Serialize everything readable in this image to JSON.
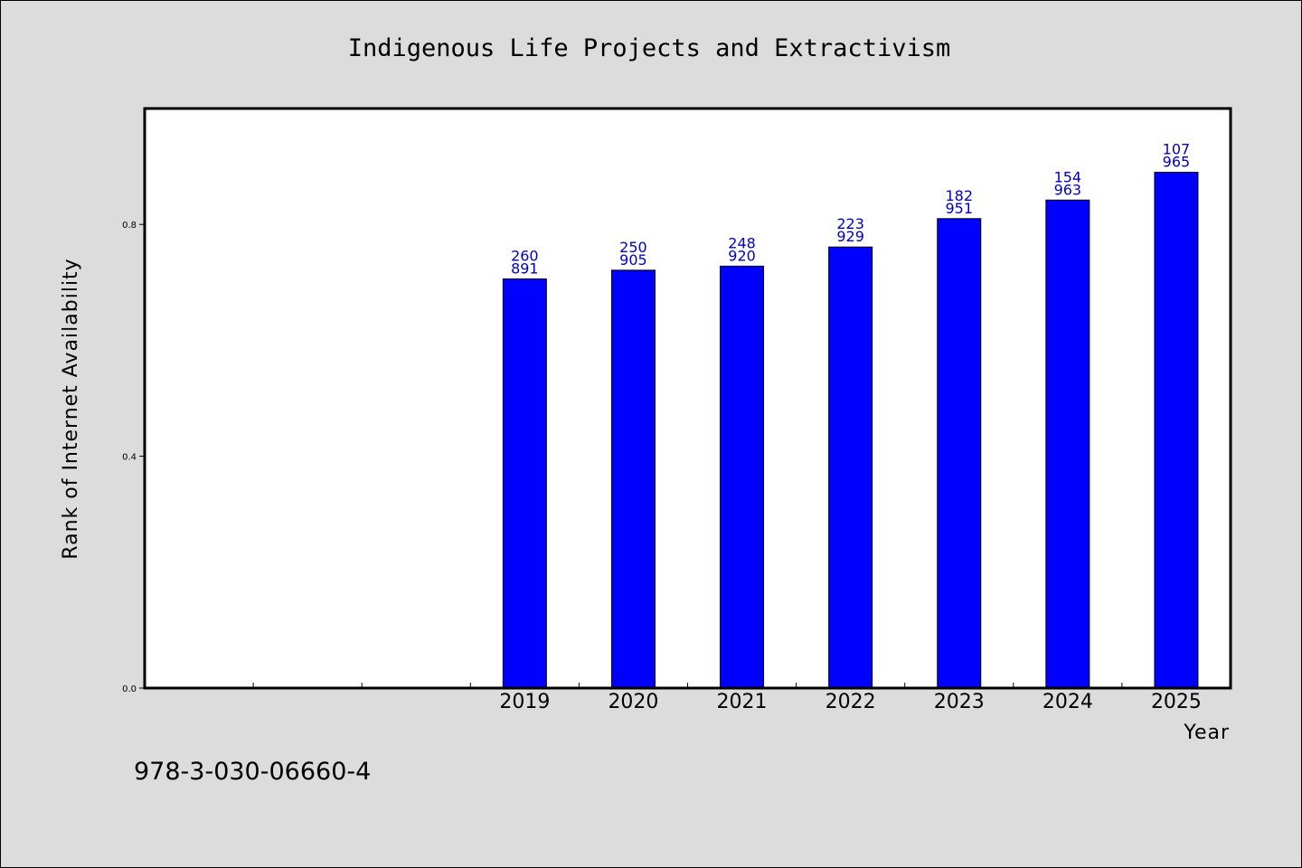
{
  "chart_data": {
    "type": "bar",
    "title": "Indigenous Life Projects and Extractivism",
    "xlabel": "Year",
    "ylabel": "Rank of Internet Availability",
    "categories": [
      "",
      "",
      "",
      "2019",
      "2020",
      "2021",
      "2022",
      "2023",
      "2024",
      "2025"
    ],
    "values": [
      null,
      null,
      null,
      0.706,
      0.721,
      0.728,
      0.761,
      0.81,
      0.842,
      0.89
    ],
    "data_labels": [
      null,
      null,
      null,
      [
        "260",
        "891"
      ],
      [
        "250",
        "905"
      ],
      [
        "248",
        "920"
      ],
      [
        "223",
        "929"
      ],
      [
        "182",
        "951"
      ],
      [
        "154",
        "963"
      ],
      [
        "107",
        "965"
      ]
    ],
    "ylim": [
      0,
      1.0
    ],
    "y_ticks": [
      0.0,
      0.4,
      0.8
    ],
    "y_tick_labels": [
      "0.0",
      "0.4",
      "0.8"
    ],
    "grid": false,
    "bar_color": "#0000ff",
    "label_color": "#0000cc",
    "background": "#dcdcdc",
    "plot_background": "#ffffff"
  },
  "footer": {
    "isbn": "978-3-030-06660-4"
  }
}
